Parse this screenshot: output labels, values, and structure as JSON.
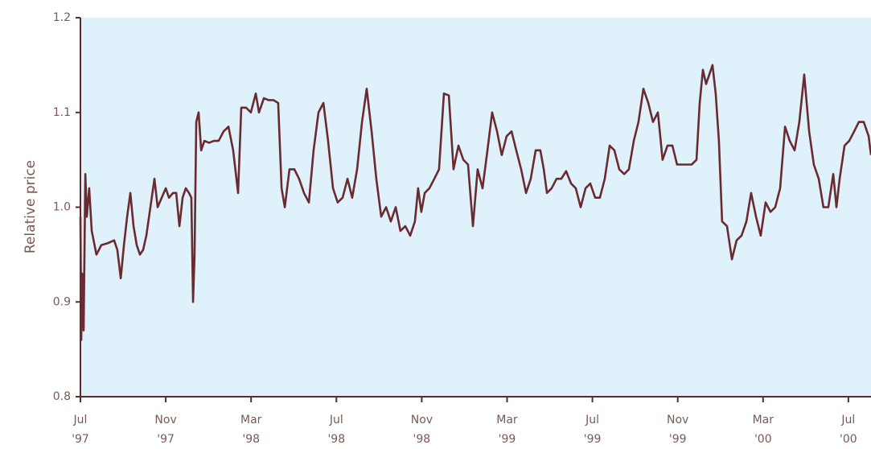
{
  "chart_data": {
    "type": "line",
    "y_label": "Relative price",
    "color": "#6a2a30",
    "background": "#dff1fa",
    "x": [
      0,
      0.04,
      0.08,
      0.15,
      0.23,
      0.3,
      0.41,
      0.53,
      0.75,
      0.98,
      1.28,
      1.58,
      1.73,
      1.89,
      2.04,
      2.19,
      2.34,
      2.49,
      2.64,
      2.79,
      2.94,
      3.09,
      3.28,
      3.47,
      3.62,
      3.81,
      4.0,
      4.15,
      4.34,
      4.49,
      4.64,
      4.79,
      4.94,
      5.09,
      5.2,
      5.28,
      5.35,
      5.43,
      5.54,
      5.66,
      5.81,
      6.03,
      6.26,
      6.48,
      6.71,
      6.94,
      7.16,
      7.39,
      7.54,
      7.77,
      7.99,
      8.22,
      8.37,
      8.6,
      8.82,
      9.05,
      9.27,
      9.43,
      9.58,
      9.8,
      10.03,
      10.25,
      10.48,
      10.71,
      10.93,
      11.16,
      11.39,
      11.61,
      11.84,
      12.06,
      12.29,
      12.52,
      12.74,
      12.97,
      13.2,
      13.42,
      13.65,
      13.87,
      14.1,
      14.33,
      14.55,
      14.78,
      15.0,
      15.23,
      15.46,
      15.68,
      15.83,
      15.98,
      16.14,
      16.36,
      16.59,
      16.81,
      17.04,
      17.27,
      17.49,
      17.72,
      17.95,
      18.17,
      18.4,
      18.62,
      18.85,
      19.08,
      19.3,
      19.53,
      19.75,
      19.98,
      20.21,
      20.43,
      20.66,
      20.89,
      21.11,
      21.34,
      21.56,
      21.72,
      21.87,
      22.09,
      22.32,
      22.54,
      22.77,
      23.0,
      23.22,
      23.45,
      23.68,
      23.9,
      24.13,
      24.35,
      24.58,
      24.81,
      25.03,
      25.26,
      25.49,
      25.71,
      25.94,
      26.16,
      26.39,
      26.62,
      26.84,
      27.07,
      27.29,
      27.52,
      27.75,
      27.97,
      28.2,
      28.43,
      28.65,
      28.88,
      29.03,
      29.18,
      29.33,
      29.48,
      29.63,
      29.78,
      29.93,
      30.08,
      30.31,
      30.54,
      30.76,
      30.99,
      31.22,
      31.44,
      31.67,
      31.89,
      32.12,
      32.35,
      32.57,
      32.8,
      33.03,
      33.25,
      33.48,
      33.7,
      33.93,
      34.16,
      34.38,
      34.61,
      34.83,
      35.06,
      35.29,
      35.44,
      35.59,
      35.82,
      36.04,
      36.27,
      36.49,
      36.72,
      36.95,
      37.06
    ],
    "values": [
      0.99,
      0.86,
      0.93,
      0.87,
      1.035,
      0.99,
      1.02,
      0.975,
      0.95,
      0.96,
      0.962,
      0.965,
      0.955,
      0.925,
      0.96,
      0.99,
      1.015,
      0.98,
      0.96,
      0.95,
      0.955,
      0.97,
      1.0,
      1.03,
      1.0,
      1.01,
      1.02,
      1.01,
      1.015,
      1.015,
      0.98,
      1.01,
      1.02,
      1.015,
      1.01,
      0.9,
      0.95,
      1.09,
      1.1,
      1.06,
      1.07,
      1.068,
      1.07,
      1.07,
      1.08,
      1.085,
      1.06,
      1.015,
      1.105,
      1.105,
      1.1,
      1.12,
      1.1,
      1.115,
      1.113,
      1.113,
      1.11,
      1.02,
      1.0,
      1.04,
      1.04,
      1.03,
      1.015,
      1.005,
      1.06,
      1.1,
      1.11,
      1.07,
      1.02,
      1.005,
      1.01,
      1.03,
      1.01,
      1.04,
      1.09,
      1.125,
      1.08,
      1.03,
      0.99,
      1.0,
      0.985,
      1.0,
      0.975,
      0.98,
      0.97,
      0.985,
      1.02,
      0.995,
      1.015,
      1.02,
      1.03,
      1.04,
      1.12,
      1.118,
      1.04,
      1.065,
      1.05,
      1.045,
      0.98,
      1.04,
      1.02,
      1.06,
      1.1,
      1.08,
      1.055,
      1.075,
      1.08,
      1.06,
      1.04,
      1.015,
      1.03,
      1.06,
      1.06,
      1.04,
      1.015,
      1.02,
      1.03,
      1.03,
      1.038,
      1.025,
      1.02,
      1.0,
      1.02,
      1.025,
      1.01,
      1.01,
      1.03,
      1.065,
      1.06,
      1.04,
      1.035,
      1.04,
      1.07,
      1.09,
      1.125,
      1.11,
      1.09,
      1.1,
      1.05,
      1.065,
      1.065,
      1.045,
      1.045,
      1.045,
      1.045,
      1.05,
      1.11,
      1.145,
      1.13,
      1.14,
      1.15,
      1.12,
      1.07,
      0.985,
      0.98,
      0.945,
      0.965,
      0.97,
      0.985,
      1.015,
      0.99,
      0.97,
      1.005,
      0.995,
      1.0,
      1.02,
      1.085,
      1.07,
      1.06,
      1.09,
      1.14,
      1.08,
      1.045,
      1.03,
      1.0,
      1.0,
      1.035,
      1.0,
      1.03,
      1.065,
      1.07,
      1.08,
      1.09,
      1.09,
      1.075,
      1.055
    ],
    "xlim": [
      0,
      37.06
    ],
    "ylim": [
      0.8,
      1.2
    ],
    "yticks": [
      0.8,
      0.9,
      {
        "value": 1,
        "label": "1.0"
      },
      1.1,
      1.2
    ],
    "xticks": [
      {
        "value": 0,
        "label": [
          "Jul",
          "'97"
        ]
      },
      {
        "value": 4,
        "label": [
          "Nov",
          "'97"
        ]
      },
      {
        "value": 8,
        "label": [
          "Mar",
          "'98"
        ]
      },
      {
        "value": 12,
        "label": [
          "Jul",
          "'98"
        ]
      },
      {
        "value": 16,
        "label": [
          "Nov",
          "'98"
        ]
      },
      {
        "value": 20,
        "label": [
          "Mar",
          "'99"
        ]
      },
      {
        "value": 24,
        "label": [
          "Jul",
          "'99"
        ]
      },
      {
        "value": 28,
        "label": [
          "Nov",
          "'99"
        ]
      },
      {
        "value": 32,
        "label": [
          "Mar",
          "'00"
        ]
      },
      {
        "value": 36,
        "label": [
          "Jul",
          "'00"
        ]
      }
    ]
  }
}
